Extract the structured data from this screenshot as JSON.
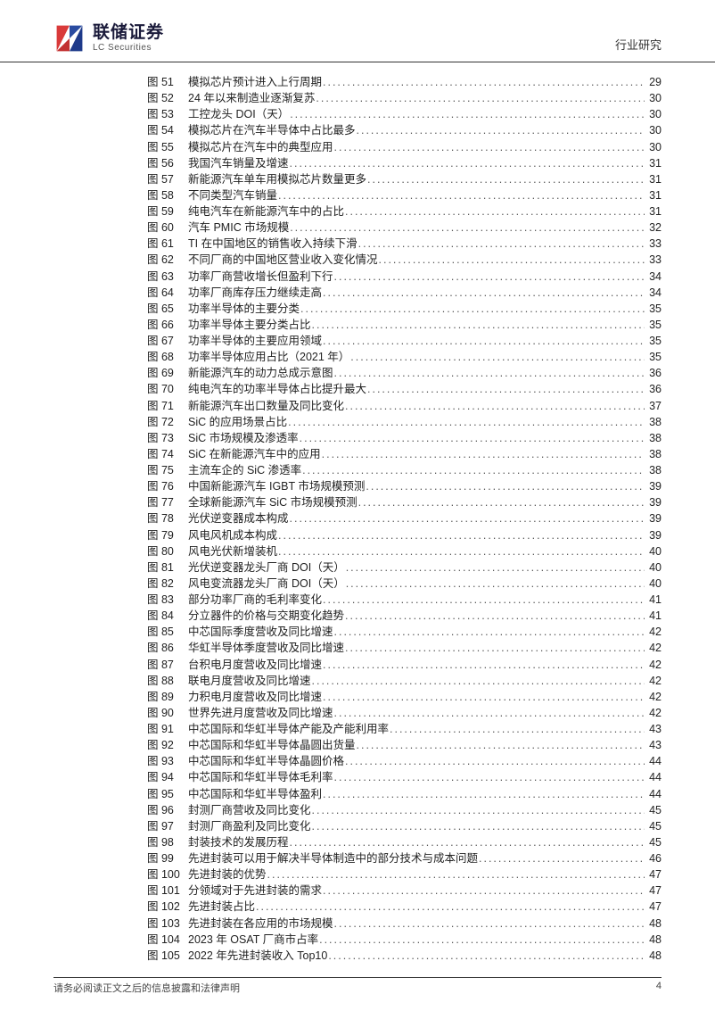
{
  "header": {
    "logo_cn": "联储证券",
    "logo_en": "LC Securities",
    "doc_type": "行业研究"
  },
  "toc": {
    "label_prefix": "图",
    "items": [
      {
        "n": 51,
        "title": "模拟芯片预计进入上行周期",
        "page": 29
      },
      {
        "n": 52,
        "title": "24 年以来制造业逐渐复苏",
        "page": 30
      },
      {
        "n": 53,
        "title": "工控龙头 DOI（天）",
        "page": 30
      },
      {
        "n": 54,
        "title": "模拟芯片在汽车半导体中占比最多",
        "page": 30
      },
      {
        "n": 55,
        "title": "模拟芯片在汽车中的典型应用",
        "page": 30
      },
      {
        "n": 56,
        "title": "我国汽车销量及增速",
        "page": 31
      },
      {
        "n": 57,
        "title": "新能源汽车单车用模拟芯片数量更多",
        "page": 31
      },
      {
        "n": 58,
        "title": "不同类型汽车销量",
        "page": 31
      },
      {
        "n": 59,
        "title": "纯电汽车在新能源汽车中的占比",
        "page": 31
      },
      {
        "n": 60,
        "title": "汽车 PMIC 市场规模",
        "page": 32
      },
      {
        "n": 61,
        "title": "TI 在中国地区的销售收入持续下滑",
        "page": 33
      },
      {
        "n": 62,
        "title": "不同厂商的中国地区营业收入变化情况",
        "page": 33
      },
      {
        "n": 63,
        "title": "功率厂商营收增长但盈利下行",
        "page": 34
      },
      {
        "n": 64,
        "title": "功率厂商库存压力继续走高",
        "page": 34
      },
      {
        "n": 65,
        "title": "功率半导体的主要分类",
        "page": 35
      },
      {
        "n": 66,
        "title": "功率半导体主要分类占比",
        "page": 35
      },
      {
        "n": 67,
        "title": "功率半导体的主要应用领域",
        "page": 35
      },
      {
        "n": 68,
        "title": "功率半导体应用占比（2021 年）",
        "page": 35
      },
      {
        "n": 69,
        "title": "新能源汽车的动力总成示意图",
        "page": 36
      },
      {
        "n": 70,
        "title": "纯电汽车的功率半导体占比提升最大",
        "page": 36
      },
      {
        "n": 71,
        "title": "新能源汽车出口数量及同比变化",
        "page": 37
      },
      {
        "n": 72,
        "title": "SiC 的应用场景占比",
        "page": 38
      },
      {
        "n": 73,
        "title": "SiC 市场规模及渗透率",
        "page": 38
      },
      {
        "n": 74,
        "title": "SiC 在新能源汽车中的应用",
        "page": 38
      },
      {
        "n": 75,
        "title": "主流车企的 SiC 渗透率",
        "page": 38
      },
      {
        "n": 76,
        "title": "中国新能源汽车 IGBT 市场规模预测",
        "page": 39
      },
      {
        "n": 77,
        "title": "全球新能源汽车 SiC 市场规模预测",
        "page": 39
      },
      {
        "n": 78,
        "title": "光伏逆变器成本构成",
        "page": 39
      },
      {
        "n": 79,
        "title": "风电风机成本构成",
        "page": 39
      },
      {
        "n": 80,
        "title": "风电光伏新增装机",
        "page": 40
      },
      {
        "n": 81,
        "title": "光伏逆变器龙头厂商 DOI（天）",
        "page": 40
      },
      {
        "n": 82,
        "title": "风电变流器龙头厂商 DOI（天）",
        "page": 40
      },
      {
        "n": 83,
        "title": "部分功率厂商的毛利率变化",
        "page": 41
      },
      {
        "n": 84,
        "title": "分立器件的价格与交期变化趋势",
        "page": 41
      },
      {
        "n": 85,
        "title": "中芯国际季度营收及同比增速",
        "page": 42
      },
      {
        "n": 86,
        "title": "华虹半导体季度营收及同比增速",
        "page": 42
      },
      {
        "n": 87,
        "title": "台积电月度营收及同比增速",
        "page": 42
      },
      {
        "n": 88,
        "title": "联电月度营收及同比增速",
        "page": 42
      },
      {
        "n": 89,
        "title": "力积电月度营收及同比增速",
        "page": 42
      },
      {
        "n": 90,
        "title": "世界先进月度营收及同比增速",
        "page": 42
      },
      {
        "n": 91,
        "title": "中芯国际和华虹半导体产能及产能利用率",
        "page": 43
      },
      {
        "n": 92,
        "title": "中芯国际和华虹半导体晶圆出货量",
        "page": 43
      },
      {
        "n": 93,
        "title": "中芯国际和华虹半导体晶圆价格",
        "page": 44
      },
      {
        "n": 94,
        "title": "中芯国际和华虹半导体毛利率",
        "page": 44
      },
      {
        "n": 95,
        "title": "中芯国际和华虹半导体盈利",
        "page": 44
      },
      {
        "n": 96,
        "title": "封测厂商营收及同比变化",
        "page": 45
      },
      {
        "n": 97,
        "title": "封测厂商盈利及同比变化",
        "page": 45
      },
      {
        "n": 98,
        "title": "封装技术的发展历程",
        "page": 45
      },
      {
        "n": 99,
        "title": "先进封装可以用于解决半导体制造中的部分技术与成本问题",
        "page": 46
      },
      {
        "n": 100,
        "title": "先进封装的优势",
        "page": 47
      },
      {
        "n": 101,
        "title": "分领域对于先进封装的需求",
        "page": 47
      },
      {
        "n": 102,
        "title": "先进封装占比",
        "page": 47
      },
      {
        "n": 103,
        "title": "先进封装在各应用的市场规模",
        "page": 48
      },
      {
        "n": 104,
        "title": "2023 年 OSAT 厂商市占率",
        "page": 48
      },
      {
        "n": 105,
        "title": "2022 年先进封装收入 Top10",
        "page": 48
      }
    ]
  },
  "footer": {
    "disclaimer": "请务必阅读正文之后的信息披露和法律声明",
    "page_num": "4"
  },
  "colors": {
    "logo_red": "#d93a3a",
    "logo_blue": "#1e3a8a",
    "text": "#222222",
    "border": "#333333"
  }
}
